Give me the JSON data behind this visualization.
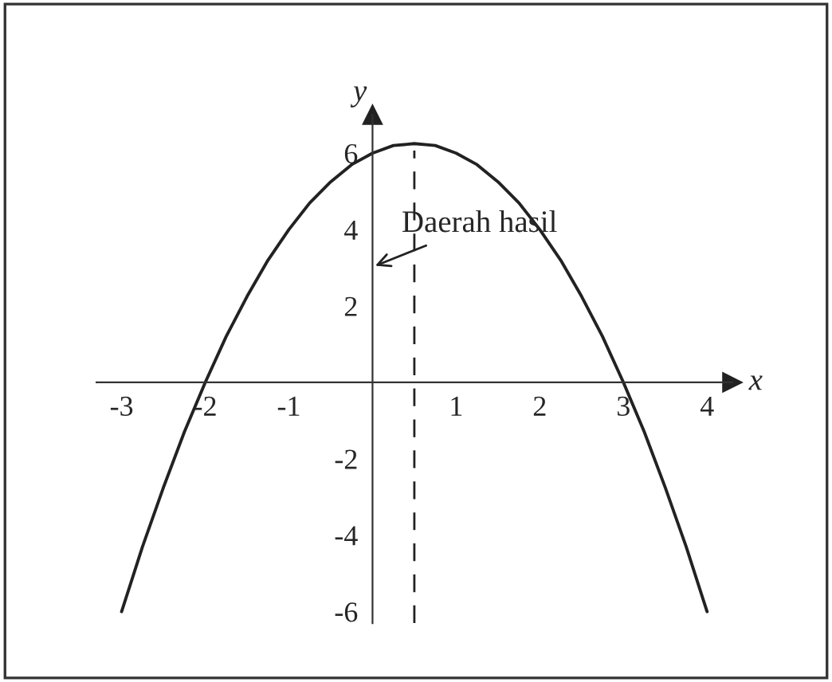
{
  "chart_data": {
    "type": "line",
    "xlabel": "x",
    "ylabel": "y",
    "x": [
      -3,
      -2.75,
      -2.5,
      -2.25,
      -2,
      -1.75,
      -1.5,
      -1.25,
      -1,
      -0.75,
      -0.5,
      -0.25,
      0,
      0.25,
      0.5,
      0.75,
      1,
      1.25,
      1.5,
      1.75,
      2,
      2.25,
      2.5,
      2.75,
      3,
      3.25,
      3.5,
      3.75,
      4
    ],
    "series": [
      {
        "color": "#222222",
        "values": [
          -6,
          -4.3,
          -2.75,
          -1.3,
          0,
          1.2,
          2.25,
          3.2,
          4,
          4.7,
          5.25,
          5.7,
          6,
          6.2,
          6.25,
          6.2,
          6,
          5.7,
          5.25,
          4.7,
          4,
          3.2,
          2.25,
          1.2,
          0,
          -1.3,
          -2.75,
          -4.3,
          -6
        ]
      }
    ],
    "xlim": [
      -3.3,
      4.3
    ],
    "ylim": [
      -6.3,
      7
    ],
    "xticks": [
      -3,
      -2,
      -1,
      1,
      2,
      3,
      4
    ],
    "yticks": [
      -6,
      -4,
      -2,
      2,
      4,
      6
    ],
    "ref_lines": [
      {
        "axis": "x",
        "value": 0.5,
        "line_style": "dashed",
        "color": "#222222"
      }
    ],
    "annotations": [
      "Daerah hasil"
    ],
    "grid": false,
    "marker": "none",
    "line_style": "solid"
  }
}
